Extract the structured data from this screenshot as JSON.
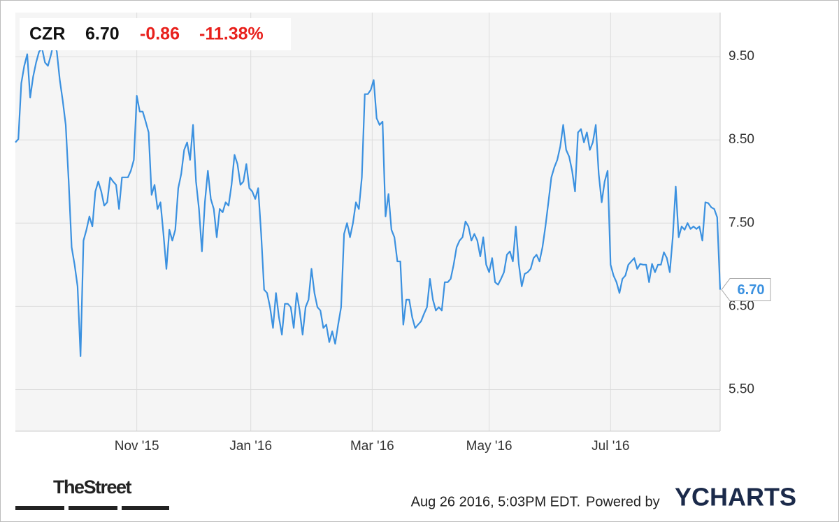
{
  "chart_data": {
    "type": "line",
    "ticker": "CZR",
    "price": "6.70",
    "change": "-0.86",
    "change_pct": "-11.38%",
    "timestamp": "Aug 26 2016, 5:03PM EDT.",
    "powered_by": "Powered by",
    "brand": "YCHARTS",
    "publisher": "TheStreet",
    "color": "#3b91e0",
    "grid": true,
    "xlim": [
      0,
      238
    ],
    "xticks": [
      {
        "value": 41,
        "label": "Nov '15"
      },
      {
        "value": 79.5,
        "label": "Jan '16"
      },
      {
        "value": 120.5,
        "label": "Mar '16"
      },
      {
        "value": 160,
        "label": "May '16"
      },
      {
        "value": 201,
        "label": "Jul '16"
      }
    ],
    "ylim": [
      5.0,
      10.03
    ],
    "yticks": [
      {
        "value": 5.5,
        "label": "5.50"
      },
      {
        "value": 6.5,
        "label": "6.50"
      },
      {
        "value": 7.5,
        "label": "7.50"
      },
      {
        "value": 8.5,
        "label": "8.50"
      },
      {
        "value": 9.5,
        "label": "9.50"
      }
    ],
    "values": [
      8.47,
      8.51,
      9.18,
      9.39,
      9.53,
      9.01,
      9.26,
      9.43,
      9.56,
      9.6,
      9.43,
      9.39,
      9.52,
      9.68,
      9.56,
      9.22,
      8.97,
      8.68,
      8.0,
      7.21,
      7.0,
      6.74,
      5.9,
      7.29,
      7.42,
      7.58,
      7.46,
      7.88,
      8.0,
      7.88,
      7.71,
      7.75,
      8.05,
      8.0,
      7.96,
      7.67,
      8.05,
      8.05,
      8.05,
      8.13,
      8.26,
      9.03,
      8.84,
      8.84,
      8.72,
      8.59,
      7.84,
      7.96,
      7.67,
      7.75,
      7.37,
      6.95,
      7.42,
      7.29,
      7.42,
      7.92,
      8.09,
      8.38,
      8.47,
      8.26,
      8.68,
      8.0,
      7.67,
      7.16,
      7.75,
      8.13,
      7.79,
      7.67,
      7.33,
      7.67,
      7.63,
      7.75,
      7.71,
      7.96,
      8.32,
      8.21,
      7.96,
      8.0,
      8.21,
      7.92,
      7.88,
      7.79,
      7.92,
      7.37,
      6.7,
      6.66,
      6.49,
      6.24,
      6.66,
      6.37,
      6.16,
      6.53,
      6.53,
      6.49,
      6.24,
      6.66,
      6.45,
      6.16,
      6.49,
      6.58,
      6.95,
      6.66,
      6.49,
      6.45,
      6.24,
      6.28,
      6.07,
      6.2,
      6.05,
      6.28,
      6.49,
      7.37,
      7.5,
      7.33,
      7.5,
      7.75,
      7.67,
      8.05,
      9.05,
      9.05,
      9.1,
      9.22,
      8.76,
      8.68,
      8.72,
      7.58,
      7.85,
      7.42,
      7.33,
      7.04,
      7.04,
      6.28,
      6.58,
      6.58,
      6.37,
      6.24,
      6.28,
      6.32,
      6.41,
      6.49,
      6.83,
      6.58,
      6.45,
      6.49,
      6.45,
      6.79,
      6.79,
      6.83,
      7.0,
      7.21,
      7.29,
      7.33,
      7.52,
      7.46,
      7.29,
      7.37,
      7.29,
      7.1,
      7.33,
      7.0,
      6.91,
      7.08,
      6.79,
      6.76,
      6.83,
      6.91,
      7.12,
      7.16,
      7.04,
      7.46,
      7.01,
      6.74,
      6.89,
      6.91,
      6.95,
      7.08,
      7.12,
      7.04,
      7.21,
      7.46,
      7.75,
      8.05,
      8.17,
      8.26,
      8.42,
      8.68,
      8.38,
      8.3,
      8.13,
      7.88,
      8.59,
      8.63,
      8.47,
      8.59,
      8.38,
      8.47,
      8.68,
      8.09,
      7.75,
      8.0,
      8.13,
      7.0,
      6.87,
      6.79,
      6.66,
      6.83,
      6.87,
      7.0,
      7.04,
      7.08,
      6.95,
      7.01,
      7.0,
      7.0,
      6.79,
      7.01,
      6.91,
      7.0,
      7.0,
      7.15,
      7.08,
      6.91,
      7.33,
      7.94,
      7.33,
      7.46,
      7.42,
      7.5,
      7.43,
      7.46,
      7.43,
      7.46,
      7.29,
      7.75,
      7.74,
      7.69,
      7.67,
      7.57,
      6.7
    ]
  }
}
